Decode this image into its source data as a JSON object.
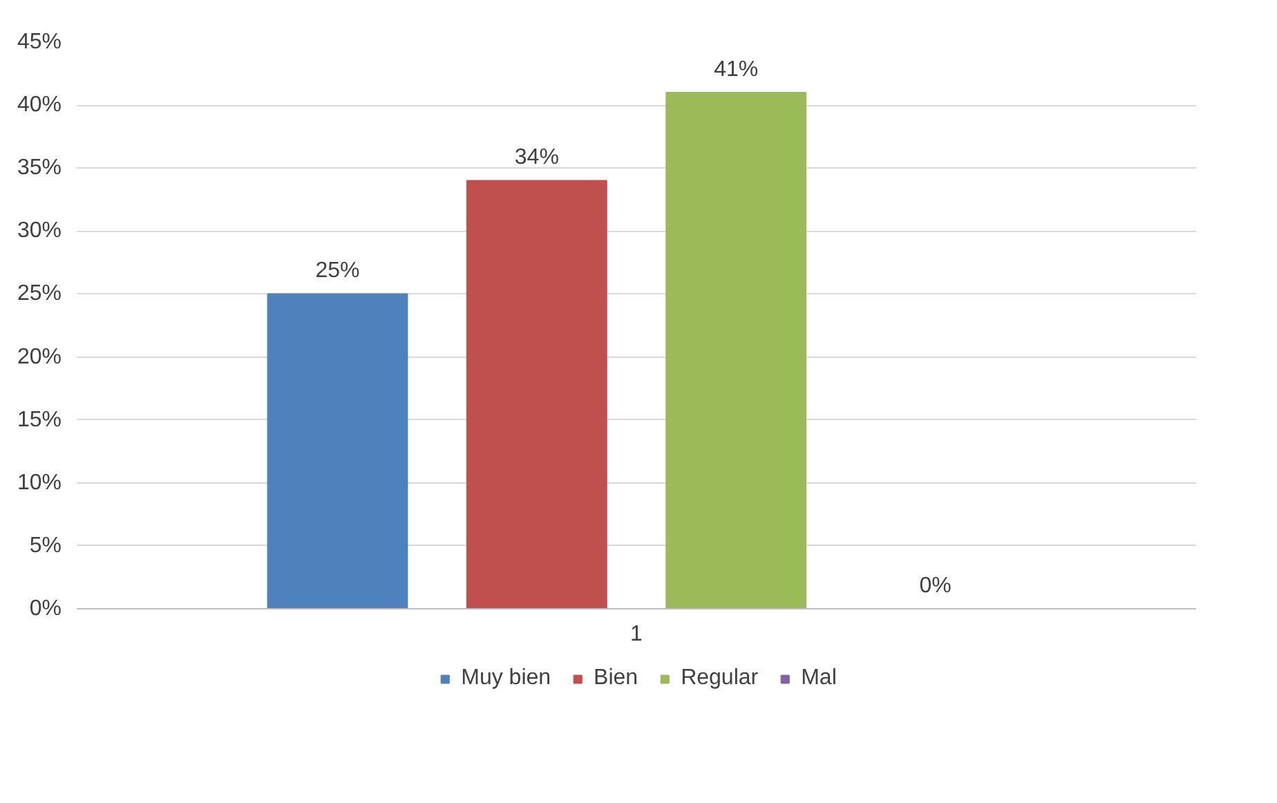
{
  "chart_data": {
    "type": "bar",
    "categories": [
      "1"
    ],
    "series": [
      {
        "name": "Muy bien",
        "color": "#4f81bd",
        "values": [
          25
        ],
        "value_labels": [
          "25%"
        ]
      },
      {
        "name": "Bien",
        "color": "#c0504d",
        "values": [
          34
        ],
        "value_labels": [
          "34%"
        ]
      },
      {
        "name": "Regular",
        "color": "#9bbb59",
        "values": [
          41
        ],
        "value_labels": [
          "41%"
        ]
      },
      {
        "name": "Mal",
        "color": "#8064a2",
        "values": [
          0
        ],
        "value_labels": [
          "0%"
        ]
      }
    ],
    "ylim": [
      0,
      45
    ],
    "yticks": [
      {
        "value": 0,
        "label": "0%"
      },
      {
        "value": 5,
        "label": "5%"
      },
      {
        "value": 10,
        "label": "10%"
      },
      {
        "value": 15,
        "label": "15%"
      },
      {
        "value": 20,
        "label": "20%"
      },
      {
        "value": 25,
        "label": "25%"
      },
      {
        "value": 30,
        "label": "30%"
      },
      {
        "value": 35,
        "label": "35%"
      },
      {
        "value": 40,
        "label": "40%"
      },
      {
        "value": 45,
        "label": "45%"
      }
    ],
    "grid": "y",
    "legend": "bottom"
  }
}
